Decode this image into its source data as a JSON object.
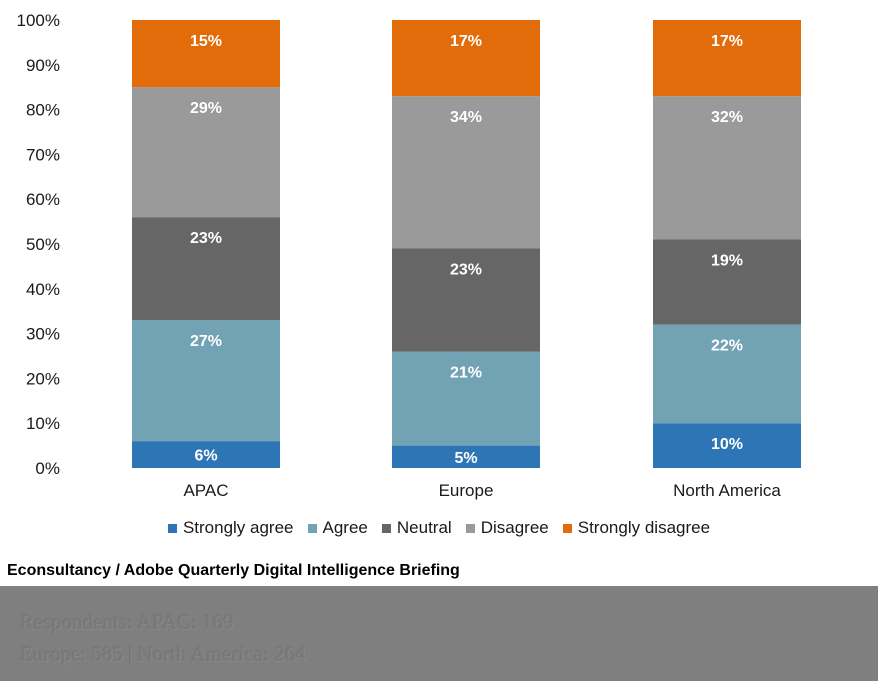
{
  "chart_data": {
    "type": "bar",
    "stacked": true,
    "categories": [
      "APAC",
      "Europe",
      "North America"
    ],
    "series": [
      {
        "name": "Strongly agree",
        "color": "#2e75b6",
        "values": [
          6,
          5,
          10
        ]
      },
      {
        "name": "Agree",
        "color": "#71a3b5",
        "values": [
          27,
          21,
          22
        ]
      },
      {
        "name": "Neutral",
        "color": "#666666",
        "values": [
          23,
          23,
          19
        ]
      },
      {
        "name": "Disagree",
        "color": "#9a9a9a",
        "values": [
          29,
          34,
          32
        ]
      },
      {
        "name": "Strongly disagree",
        "color": "#e36c0a",
        "values": [
          15,
          17,
          17
        ]
      }
    ],
    "yticks": [
      "0%",
      "10%",
      "20%",
      "30%",
      "40%",
      "50%",
      "60%",
      "70%",
      "80%",
      "90%",
      "100%"
    ],
    "ylim": [
      0,
      100
    ],
    "value_suffix": "%",
    "legend_position": "bottom",
    "grid": false
  },
  "source": "Econsultancy / Adobe Quarterly Digital Intelligence Briefing",
  "footer": {
    "line1": "Respondents: APAC: 169",
    "line2": "Europe: 585 | North America: 264"
  }
}
